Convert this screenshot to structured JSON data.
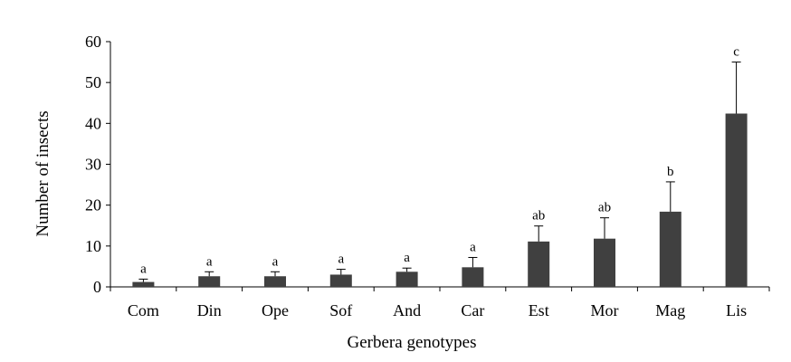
{
  "chart_data": {
    "type": "bar",
    "title": "",
    "xlabel": "Gerbera genotypes",
    "ylabel": "Number of insects",
    "ylim": [
      0,
      60
    ],
    "yticks": [
      0,
      10,
      20,
      30,
      40,
      50,
      60
    ],
    "grid": false,
    "legend": "none",
    "bar_color": "#404040",
    "categories": [
      "Com",
      "Din",
      "Ope",
      "Sof",
      "And",
      "Car",
      "Est",
      "Mor",
      "Mag",
      "Lis"
    ],
    "values": [
      1.2,
      2.6,
      2.6,
      3.0,
      3.7,
      4.8,
      11.1,
      11.8,
      18.4,
      42.4
    ],
    "errors": [
      0.7,
      1.1,
      1.1,
      1.3,
      0.9,
      2.4,
      3.8,
      5.1,
      7.3,
      12.6
    ],
    "significance": [
      "a",
      "a",
      "a",
      "a",
      "a",
      "a",
      "ab",
      "ab",
      "b",
      "c"
    ]
  }
}
